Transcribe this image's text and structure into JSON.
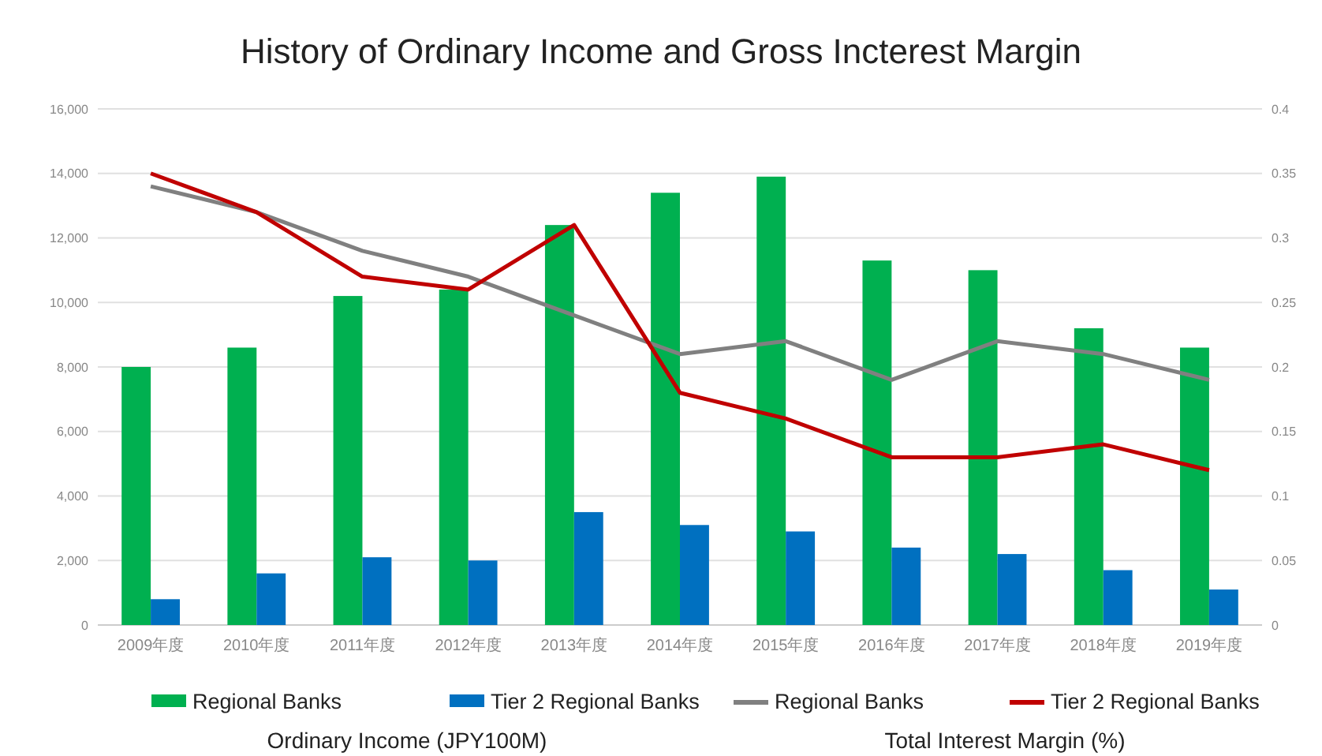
{
  "chart_data": {
    "type": "bar",
    "title": "History of Ordinary Income and Gross Incterest Margin",
    "annotations": [
      "Ordinary Income (JPY100M)",
      "Total Interest Margin (%)"
    ],
    "categories": [
      "2009年度",
      "2010年度",
      "2011年度",
      "2012年度",
      "2013年度",
      "2014年度",
      "2015年度",
      "2016年度",
      "2017年度",
      "2018年度",
      "2019年度"
    ],
    "series": [
      {
        "name": "Regional Banks",
        "color": "#00b050",
        "values": [
          8000,
          8600,
          10200,
          10400,
          12400,
          13400,
          13900,
          11300,
          11000,
          9200,
          8600
        ]
      },
      {
        "name": "Tier 2 Regional Banks",
        "color": "#0070c0",
        "values": [
          800,
          1600,
          2100,
          2000,
          3500,
          3100,
          2900,
          2400,
          2200,
          1700,
          1100
        ]
      },
      {
        "name": "Regional Banks",
        "type": "line",
        "axis": "y2",
        "color": "#808080",
        "values": [
          0.34,
          0.32,
          0.29,
          0.27,
          0.24,
          0.21,
          0.22,
          0.19,
          0.22,
          0.21,
          0.19
        ]
      },
      {
        "name": "Tier 2 Regional Banks",
        "type": "line",
        "axis": "y2",
        "color": "#c00000",
        "values": [
          0.35,
          0.32,
          0.27,
          0.26,
          0.31,
          0.18,
          0.16,
          0.13,
          0.13,
          0.14,
          0.12
        ]
      }
    ],
    "ylim": [
      0,
      16000
    ],
    "yticks": [
      {
        "value": 0,
        "label": "0"
      },
      {
        "value": 2000,
        "label": "2,000"
      },
      {
        "value": 4000,
        "label": "4,000"
      },
      {
        "value": 6000,
        "label": "6,000"
      },
      {
        "value": 8000,
        "label": "8,000"
      },
      {
        "value": 10000,
        "label": "10,000"
      },
      {
        "value": 12000,
        "label": "12,000"
      },
      {
        "value": 14000,
        "label": "14,000"
      },
      {
        "value": 16000,
        "label": "16,000"
      }
    ],
    "y2lim": [
      0,
      0.4
    ],
    "y2ticks": [
      0,
      0.05,
      0.1,
      0.15,
      0.2,
      0.25,
      0.3,
      0.35,
      0.4
    ],
    "grid": "y",
    "legend": "bottom",
    "marker": "none"
  }
}
